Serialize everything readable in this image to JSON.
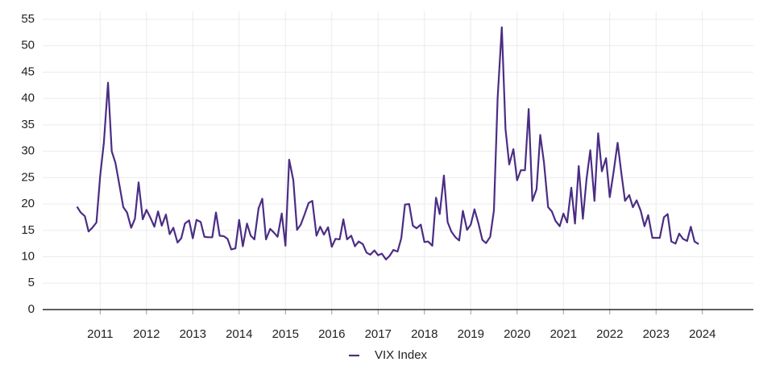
{
  "chart_data": {
    "type": "line",
    "x": [
      2011,
      2011.08,
      2011.17,
      2011.25,
      2011.33,
      2011.42,
      2011.5,
      2011.58,
      2011.67,
      2011.75,
      2011.83,
      2011.92,
      2012,
      2012.08,
      2012.17,
      2012.25,
      2012.33,
      2012.42,
      2012.5,
      2012.58,
      2012.67,
      2012.75,
      2012.83,
      2012.92,
      2013,
      2013.08,
      2013.17,
      2013.25,
      2013.33,
      2013.42,
      2013.5,
      2013.58,
      2013.67,
      2013.75,
      2013.83,
      2013.92,
      2014,
      2014.08,
      2014.17,
      2014.25,
      2014.33,
      2014.42,
      2014.5,
      2014.58,
      2014.67,
      2014.75,
      2014.83,
      2014.92,
      2015,
      2015.08,
      2015.17,
      2015.25,
      2015.33,
      2015.42,
      2015.5,
      2015.58,
      2015.67,
      2015.75,
      2015.83,
      2015.92,
      2016,
      2016.08,
      2016.17,
      2016.25,
      2016.33,
      2016.42,
      2016.5,
      2016.58,
      2016.67,
      2016.75,
      2016.83,
      2016.92,
      2017,
      2017.08,
      2017.17,
      2017.25,
      2017.33,
      2017.42,
      2017.5,
      2017.58,
      2017.67,
      2017.75,
      2017.83,
      2017.92,
      2018,
      2018.08,
      2018.17,
      2018.25,
      2018.33,
      2018.42,
      2018.5,
      2018.58,
      2018.67,
      2018.75,
      2018.83,
      2018.92,
      2019,
      2019.08,
      2019.17,
      2019.25,
      2019.33,
      2019.42,
      2019.5,
      2019.58,
      2019.67,
      2019.75,
      2019.83,
      2019.92,
      2020,
      2020.08,
      2020.17,
      2020.25,
      2020.33,
      2020.42,
      2020.5,
      2020.58,
      2020.67,
      2020.75,
      2020.83,
      2020.92,
      2021,
      2021.08,
      2021.17,
      2021.25,
      2021.33,
      2021.42,
      2021.5,
      2021.58,
      2021.67,
      2021.75,
      2021.83,
      2021.92,
      2022,
      2022.08,
      2022.17,
      2022.25,
      2022.33,
      2022.42,
      2022.5,
      2022.58,
      2022.67,
      2022.75,
      2022.83,
      2022.92,
      2023,
      2023.08,
      2023.17,
      2023.25,
      2023.33,
      2023.42,
      2023.5,
      2023.58,
      2023.67,
      2023.75,
      2023.83,
      2023.92,
      2024,
      2024.08,
      2024.17,
      2024.25,
      2024.33,
      2024.42
    ],
    "series": [
      {
        "name": "VIX Index",
        "color": "#4b2d84",
        "values": [
          19.5,
          18.4,
          17.7,
          14.8,
          15.5,
          16.5,
          25.3,
          31.6,
          43.0,
          30.0,
          27.8,
          23.4,
          19.4,
          18.4,
          15.5,
          17.2,
          24.1,
          17.1,
          18.9,
          17.5,
          15.7,
          18.6,
          15.9,
          18.0,
          14.3,
          15.5,
          12.7,
          13.5,
          16.3,
          16.9,
          13.5,
          17.0,
          16.6,
          13.8,
          13.7,
          13.7,
          18.4,
          14.0,
          13.9,
          13.4,
          11.4,
          11.6,
          17.0,
          12.0,
          16.3,
          14.0,
          13.3,
          19.2,
          21.0,
          13.3,
          15.3,
          14.6,
          13.8,
          18.2,
          12.1,
          28.4,
          24.5,
          15.1,
          16.1,
          18.2,
          20.2,
          20.6,
          14.0,
          15.7,
          14.2,
          15.6,
          11.9,
          13.4,
          13.3,
          17.1,
          13.3,
          14.0,
          12.0,
          12.9,
          12.4,
          10.8,
          10.4,
          11.2,
          10.3,
          10.6,
          9.5,
          10.2,
          11.3,
          11.0,
          13.5,
          19.9,
          20.0,
          15.9,
          15.4,
          16.1,
          12.8,
          12.9,
          12.1,
          21.2,
          18.1,
          25.4,
          16.6,
          14.8,
          13.7,
          13.1,
          18.7,
          15.1,
          16.1,
          19.0,
          16.2,
          13.2,
          12.6,
          13.8,
          18.8,
          40.1,
          53.5,
          34.2,
          27.5,
          30.4,
          24.5,
          26.4,
          26.4,
          38.0,
          20.6,
          22.8,
          33.1,
          27.9,
          19.4,
          18.6,
          16.8,
          15.8,
          18.2,
          16.5,
          23.1,
          16.3,
          27.2,
          17.2,
          24.8,
          30.2,
          20.6,
          33.4,
          26.2,
          28.7,
          21.3,
          25.9,
          31.6,
          25.9,
          20.6,
          21.7,
          19.4,
          20.7,
          18.7,
          15.8,
          17.9,
          13.6,
          13.6,
          13.6,
          17.5,
          18.1,
          12.9,
          12.5,
          14.4,
          13.4,
          13.0,
          15.7,
          12.9,
          12.4
        ]
      }
    ],
    "xlim": [
      2010.26,
      2025.6
    ],
    "xticks": [
      {
        "value": 2011.5,
        "label": "2011"
      },
      {
        "value": 2012.5,
        "label": "2012"
      },
      {
        "value": 2013.5,
        "label": "2013"
      },
      {
        "value": 2014.5,
        "label": "2014"
      },
      {
        "value": 2015.5,
        "label": "2015"
      },
      {
        "value": 2016.5,
        "label": "2016"
      },
      {
        "value": 2017.5,
        "label": "2017"
      },
      {
        "value": 2018.5,
        "label": "2018"
      },
      {
        "value": 2019.5,
        "label": "2019"
      },
      {
        "value": 2020.5,
        "label": "2020"
      },
      {
        "value": 2021.5,
        "label": "2021"
      },
      {
        "value": 2022.5,
        "label": "2022"
      },
      {
        "value": 2023.5,
        "label": "2023"
      },
      {
        "value": 2024.5,
        "label": "2024"
      }
    ],
    "ylim": [
      0,
      55
    ],
    "yticks": [
      0,
      5,
      10,
      15,
      20,
      25,
      30,
      35,
      40,
      45,
      50,
      55
    ],
    "grid": true
  }
}
